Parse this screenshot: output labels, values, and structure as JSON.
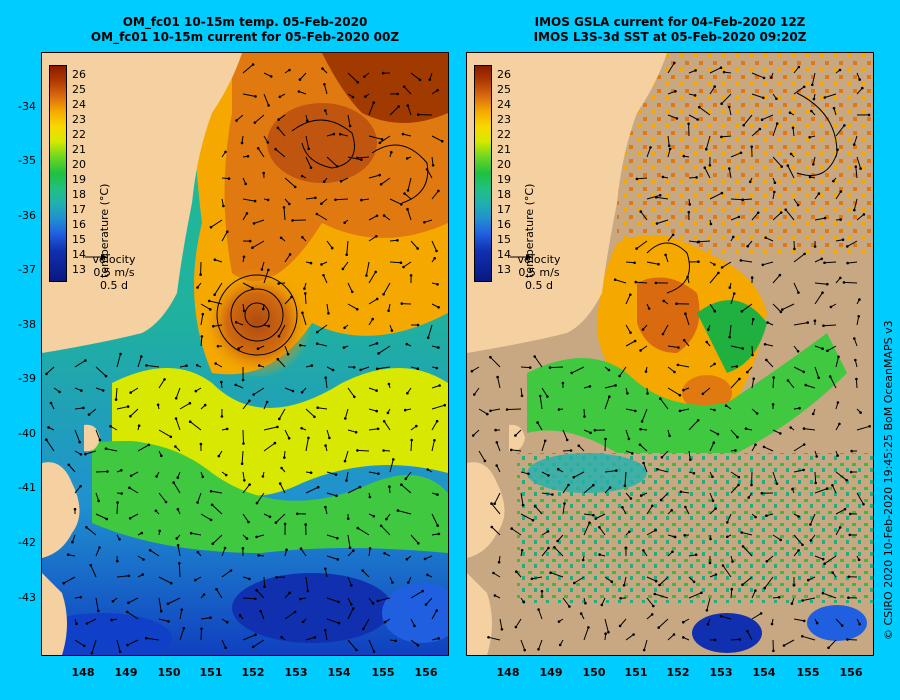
{
  "left_panel": {
    "title_line1": "OM_fc01 10-15m temp. 05-Feb-2020",
    "title_line2": "OM_fc01 10-15m current for 05-Feb-2020 00Z"
  },
  "right_panel": {
    "title_line1": "IMOS GSLA current for 04-Feb-2020 12Z",
    "title_line2": "IMOS L3S-3d SST at 05-Feb-2020 09:20Z"
  },
  "y_axis_labels": [
    "-34",
    "-35",
    "-36",
    "-37",
    "-38",
    "-39",
    "-40",
    "-41",
    "-42",
    "-43"
  ],
  "x_axis_labels": [
    "148",
    "149",
    "150",
    "151",
    "152",
    "153",
    "154",
    "155",
    "156"
  ],
  "colorbar": {
    "labels": [
      "26",
      "25",
      "24",
      "23",
      "22",
      "21",
      "20",
      "19",
      "18",
      "17",
      "16",
      "15",
      "14",
      "13"
    ],
    "title": "temperature (°C)",
    "colors": [
      "#8b1a00",
      "#b03a00",
      "#d96a10",
      "#f5a800",
      "#f8d800",
      "#d8e800",
      "#70d820",
      "#20c040",
      "#20c080",
      "#20b0b0",
      "#2090d0",
      "#2060e0",
      "#1030b0",
      "#0a1880"
    ]
  },
  "velocity_legend": {
    "title": "velocity",
    "speed": "0.5 m/s",
    "duration": "0.5 d"
  },
  "credit": "© CSIRO 2020   10-Feb-2020 19:45:25 BoM OceanMAPS v3",
  "colors": {
    "background": "#00ccff",
    "land": "#f5d0a0",
    "cloud": "#c8a882"
  }
}
